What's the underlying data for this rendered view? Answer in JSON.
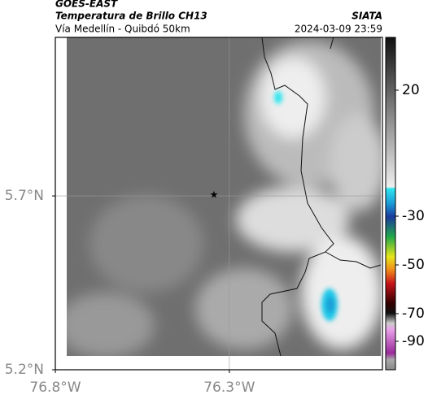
{
  "header": {
    "satellite": "GOES-EAST",
    "product": "Temperatura de Brillo CH13",
    "region": "Vía Medellín - Quibdó 50km",
    "agency": "SIATA",
    "timestamp": "2024-03-09 23:59"
  },
  "map": {
    "lonlim": [
      -76.8,
      -75.86
    ],
    "latlim": [
      5.2,
      6.156
    ],
    "lonticks": [
      {
        "value": -76.8,
        "label": "76.8°W"
      },
      {
        "value": -76.3,
        "label": "76.3°W"
      }
    ],
    "latticks": [
      {
        "value": 5.2,
        "label": "5.2°N"
      },
      {
        "value": 5.7,
        "label": "5.7°N"
      }
    ]
  },
  "colorbar": {
    "ticks": [
      20,
      -30,
      -50,
      -70,
      -90
    ]
  }
}
